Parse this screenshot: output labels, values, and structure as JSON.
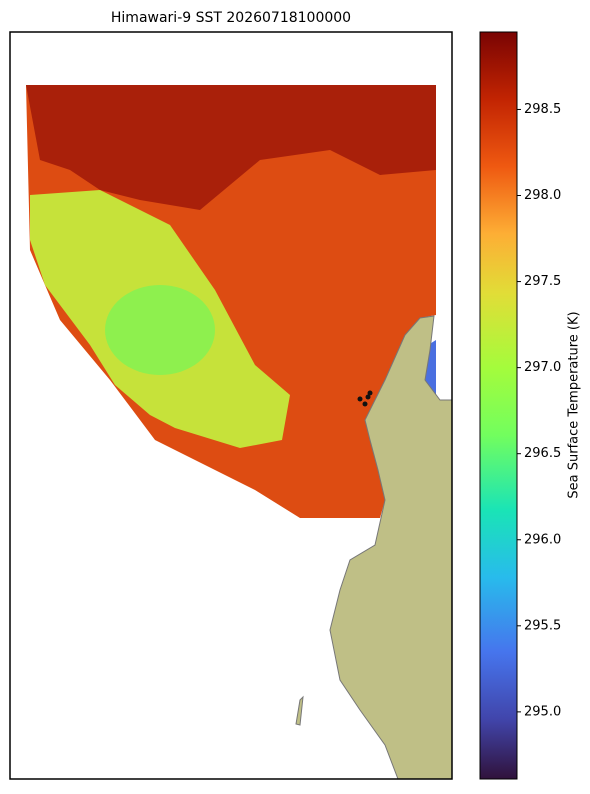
{
  "chart_data": {
    "type": "map",
    "title": "Himawari-9 SST 20260718100000",
    "colorbar_label": "Sea Surface Temperature (K)",
    "clim": [
      294.61,
      298.95
    ],
    "cticks": [
      {
        "value": 295,
        "label": "295.0"
      },
      {
        "value": 295.5,
        "label": "295.5"
      },
      {
        "value": 296,
        "label": "296.0"
      },
      {
        "value": 296.5,
        "label": "296.5"
      },
      {
        "value": 297,
        "label": "297.0"
      },
      {
        "value": 297.5,
        "label": "297.5"
      },
      {
        "value": 298,
        "label": "298.0"
      },
      {
        "value": 298.5,
        "label": "298.5"
      }
    ]
  }
}
